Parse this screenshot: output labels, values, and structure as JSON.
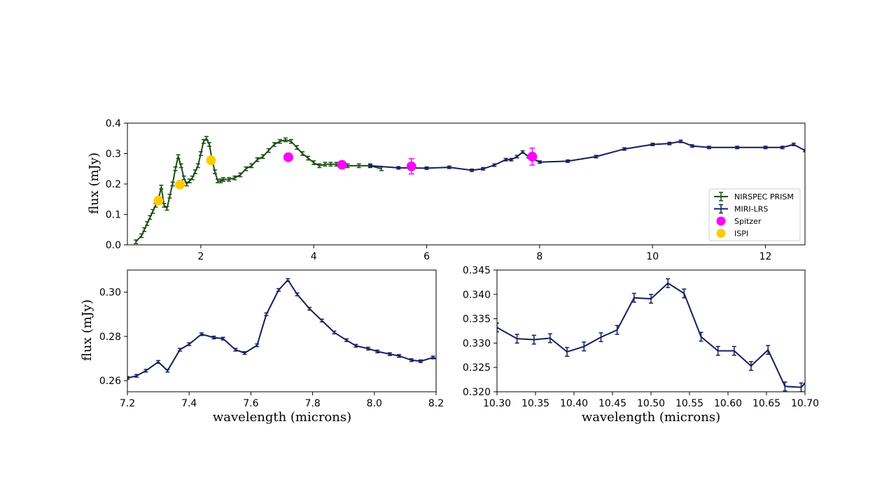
{
  "chart_data": [
    {
      "type": "line",
      "panel": "top",
      "ylabel": "flux (mJy)",
      "xlabel": "",
      "xlim": [
        0.7,
        12.7
      ],
      "ylim": [
        0.0,
        0.4
      ],
      "xticks": [
        2,
        4,
        6,
        8,
        10,
        12
      ],
      "yticks": [
        0.0,
        0.1,
        0.2,
        0.3,
        0.4
      ],
      "ytick_labels": [
        "0.0",
        "0.1",
        "0.2",
        "0.3",
        "0.4"
      ],
      "legend": {
        "position": "lower-right",
        "entries": [
          "NIRSPEC PRISM",
          "MIRI-LRS",
          "Spitzer",
          "ISPI"
        ]
      },
      "series": [
        {
          "name": "NIRSPEC PRISM",
          "color": "#1a4d12",
          "style": "line-errorbar",
          "x": [
            0.85,
            0.95,
            1.0,
            1.05,
            1.1,
            1.15,
            1.2,
            1.25,
            1.3,
            1.35,
            1.4,
            1.45,
            1.5,
            1.55,
            1.6,
            1.65,
            1.7,
            1.75,
            1.8,
            1.85,
            1.9,
            1.95,
            2.0,
            2.05,
            2.1,
            2.15,
            2.2,
            2.25,
            2.3,
            2.35,
            2.4,
            2.5,
            2.6,
            2.7,
            2.8,
            2.9,
            3.0,
            3.1,
            3.2,
            3.3,
            3.4,
            3.5,
            3.6,
            3.7,
            3.8,
            3.9,
            4.0,
            4.1,
            4.2,
            4.3,
            4.4,
            4.5,
            4.6,
            4.8,
            5.0,
            5.2
          ],
          "y": [
            0.01,
            0.03,
            0.05,
            0.07,
            0.09,
            0.11,
            0.13,
            0.15,
            0.19,
            0.13,
            0.12,
            0.16,
            0.2,
            0.25,
            0.29,
            0.26,
            0.22,
            0.2,
            0.21,
            0.22,
            0.24,
            0.26,
            0.3,
            0.34,
            0.35,
            0.33,
            0.28,
            0.24,
            0.21,
            0.21,
            0.215,
            0.215,
            0.22,
            0.23,
            0.25,
            0.26,
            0.28,
            0.29,
            0.31,
            0.33,
            0.34,
            0.345,
            0.34,
            0.32,
            0.3,
            0.285,
            0.27,
            0.26,
            0.265,
            0.265,
            0.265,
            0.26,
            0.26,
            0.26,
            0.26,
            0.25
          ],
          "yerr": 0.006
        },
        {
          "name": "MIRI-LRS",
          "color": "#141e5c",
          "style": "line-errorbar",
          "x": [
            5.0,
            5.5,
            6.0,
            6.4,
            6.8,
            7.0,
            7.2,
            7.4,
            7.5,
            7.6,
            7.7,
            7.8,
            8.0,
            8.5,
            9.0,
            9.5,
            10.0,
            10.3,
            10.5,
            10.7,
            11.0,
            11.5,
            12.0,
            12.3,
            12.5,
            12.7
          ],
          "y": [
            0.26,
            0.253,
            0.252,
            0.255,
            0.245,
            0.25,
            0.262,
            0.28,
            0.28,
            0.29,
            0.305,
            0.29,
            0.272,
            0.275,
            0.29,
            0.315,
            0.33,
            0.333,
            0.34,
            0.325,
            0.32,
            0.32,
            0.32,
            0.32,
            0.33,
            0.31
          ],
          "yerr": 0.004
        },
        {
          "name": "Spitzer",
          "color": "#ff00ff",
          "style": "marker-errorbar",
          "x": [
            3.55,
            4.5,
            5.73,
            7.87
          ],
          "y": [
            0.288,
            0.263,
            0.258,
            0.29
          ],
          "yerr": [
            0.004,
            0.004,
            0.025,
            0.028
          ]
        },
        {
          "name": "ISPI",
          "color": "#ffcc00",
          "style": "marker",
          "x": [
            1.25,
            1.63,
            2.18
          ],
          "y": [
            0.145,
            0.198,
            0.278
          ]
        }
      ]
    },
    {
      "type": "line",
      "panel": "bottom-left",
      "ylabel": "flux (mJy)",
      "xlabel": "wavelength (microns)",
      "xlim": [
        7.2,
        8.2
      ],
      "ylim": [
        0.255,
        0.31
      ],
      "xticks": [
        7.2,
        7.4,
        7.6,
        7.8,
        8.0,
        8.2
      ],
      "xtick_labels": [
        "7.2",
        "7.4",
        "7.6",
        "7.8",
        "8.0",
        "8.2"
      ],
      "yticks": [
        0.26,
        0.28,
        0.3
      ],
      "ytick_labels": [
        "0.26",
        "0.28",
        "0.30"
      ],
      "series": [
        {
          "name": "MIRI-LRS",
          "color": "#141e5c",
          "x": [
            7.2,
            7.23,
            7.26,
            7.3,
            7.33,
            7.37,
            7.4,
            7.44,
            7.48,
            7.51,
            7.55,
            7.58,
            7.62,
            7.65,
            7.69,
            7.72,
            7.75,
            7.79,
            7.83,
            7.87,
            7.91,
            7.94,
            7.98,
            8.01,
            8.05,
            8.08,
            8.12,
            8.15,
            8.19,
            8.22
          ],
          "y": [
            0.2612,
            0.2622,
            0.2645,
            0.2685,
            0.2645,
            0.274,
            0.2765,
            0.281,
            0.2795,
            0.279,
            0.274,
            0.2725,
            0.276,
            0.29,
            0.301,
            0.3055,
            0.299,
            0.2925,
            0.2872,
            0.2818,
            0.2783,
            0.2758,
            0.2745,
            0.2732,
            0.272,
            0.2712,
            0.2693,
            0.2688,
            0.2705,
            0.269
          ],
          "yerr": 0.0006
        }
      ]
    },
    {
      "type": "line",
      "panel": "bottom-right",
      "ylabel": "",
      "xlabel": "wavelength (microns)",
      "xlim": [
        10.3,
        10.7
      ],
      "ylim": [
        0.32,
        0.345
      ],
      "xticks": [
        10.3,
        10.35,
        10.4,
        10.45,
        10.5,
        10.55,
        10.6,
        10.65,
        10.7
      ],
      "xtick_labels": [
        "10.30",
        "10.35",
        "10.40",
        "10.45",
        "10.50",
        "10.55",
        "10.60",
        "10.65",
        "10.70"
      ],
      "yticks": [
        0.32,
        0.325,
        0.33,
        0.335,
        0.34,
        0.345
      ],
      "ytick_labels": [
        "0.320",
        "0.325",
        "0.330",
        "0.335",
        "0.340",
        "0.345"
      ],
      "series": [
        {
          "name": "MIRI-LRS",
          "color": "#141e5c",
          "x": [
            10.3,
            10.326,
            10.348,
            10.369,
            10.391,
            10.413,
            10.435,
            10.456,
            10.478,
            10.5,
            10.522,
            10.543,
            10.565,
            10.587,
            10.608,
            10.63,
            10.652,
            10.674,
            10.695,
            10.71
          ],
          "y": [
            0.3332,
            0.3309,
            0.3307,
            0.331,
            0.3282,
            0.3293,
            0.3312,
            0.3327,
            0.3393,
            0.3391,
            0.3423,
            0.3402,
            0.3313,
            0.3284,
            0.3284,
            0.3253,
            0.3286,
            0.3211,
            0.3209,
            0.3235
          ],
          "yerr": 0.0009
        }
      ]
    }
  ]
}
